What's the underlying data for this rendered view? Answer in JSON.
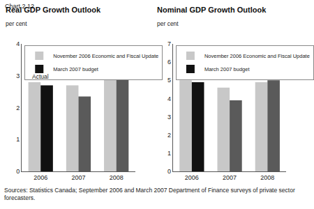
{
  "header": "Chart 2.12",
  "chart_data": [
    {
      "type": "bar",
      "title": "Real GDP Growth Outlook",
      "y_label": "per cent",
      "categories": [
        "2006",
        "2007",
        "2008"
      ],
      "series": [
        {
          "name": "November 2006 Economic and Fiscal Update",
          "color": "#c8c8c8",
          "values": [
            2.8,
            2.7,
            3.0
          ]
        },
        {
          "name": "March 2007 budget",
          "colors": [
            "#111111",
            "#5a5a5a",
            "#5a5a5a"
          ],
          "values": [
            2.7,
            2.35,
            2.9
          ]
        }
      ],
      "annotations": [
        {
          "text": "Actual",
          "x": "2006"
        }
      ],
      "ylim": [
        0,
        4
      ],
      "yticks": [
        0,
        1,
        2,
        3,
        4
      ],
      "grid": false,
      "legend": "upper left"
    },
    {
      "type": "bar",
      "title": "Nominal GDP Growth Outlook",
      "y_label": "per cent",
      "categories": [
        "2006",
        "2007",
        "2008"
      ],
      "series": [
        {
          "name": "November 2006 Economic and Fiscal Update",
          "color": "#c8c8c8",
          "values": [
            5.0,
            4.6,
            4.9
          ]
        },
        {
          "name": "March 2007 budget",
          "colors": [
            "#111111",
            "#5a5a5a",
            "#5a5a5a"
          ],
          "values": [
            4.9,
            3.9,
            5.0
          ]
        }
      ],
      "ylim": [
        0,
        7
      ],
      "yticks": [
        0,
        1,
        2,
        3,
        4,
        5,
        6,
        7
      ],
      "grid": false,
      "legend": "upper left"
    }
  ],
  "source": "Sources: Statistics Canada; September 2006 and March 2007 Department of Finance surveys of private sector forecasters."
}
